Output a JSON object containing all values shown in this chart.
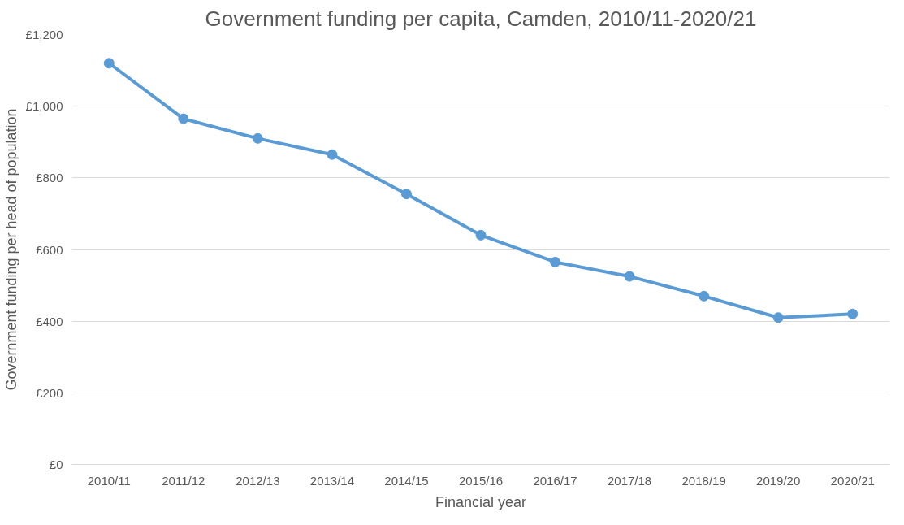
{
  "chart_data": {
    "type": "line",
    "title": "Government funding per capita, Camden, 2010/11-2020/21",
    "xlabel": "Financial year",
    "ylabel": "Government funding per head of population",
    "categories": [
      "2010/11",
      "2011/12",
      "2012/13",
      "2013/14",
      "2014/15",
      "2015/16",
      "2016/17",
      "2017/18",
      "2018/19",
      "2019/20",
      "2020/21"
    ],
    "series": [
      {
        "color": "#5b9bd5",
        "values": [
          1120,
          965,
          910,
          865,
          755,
          640,
          565,
          525,
          470,
          410,
          420
        ]
      }
    ],
    "ylim": [
      0,
      1200
    ],
    "yticks": [
      {
        "value": 0,
        "label": "£0"
      },
      {
        "value": 200,
        "label": "£200"
      },
      {
        "value": 400,
        "label": "£400"
      },
      {
        "value": 600,
        "label": "£600"
      },
      {
        "value": 800,
        "label": "£800"
      },
      {
        "value": 1000,
        "label": "£1,000"
      },
      {
        "value": 1200,
        "label": "£1,200"
      }
    ],
    "grid": "y",
    "marker": "circle",
    "line_style": "solid"
  }
}
